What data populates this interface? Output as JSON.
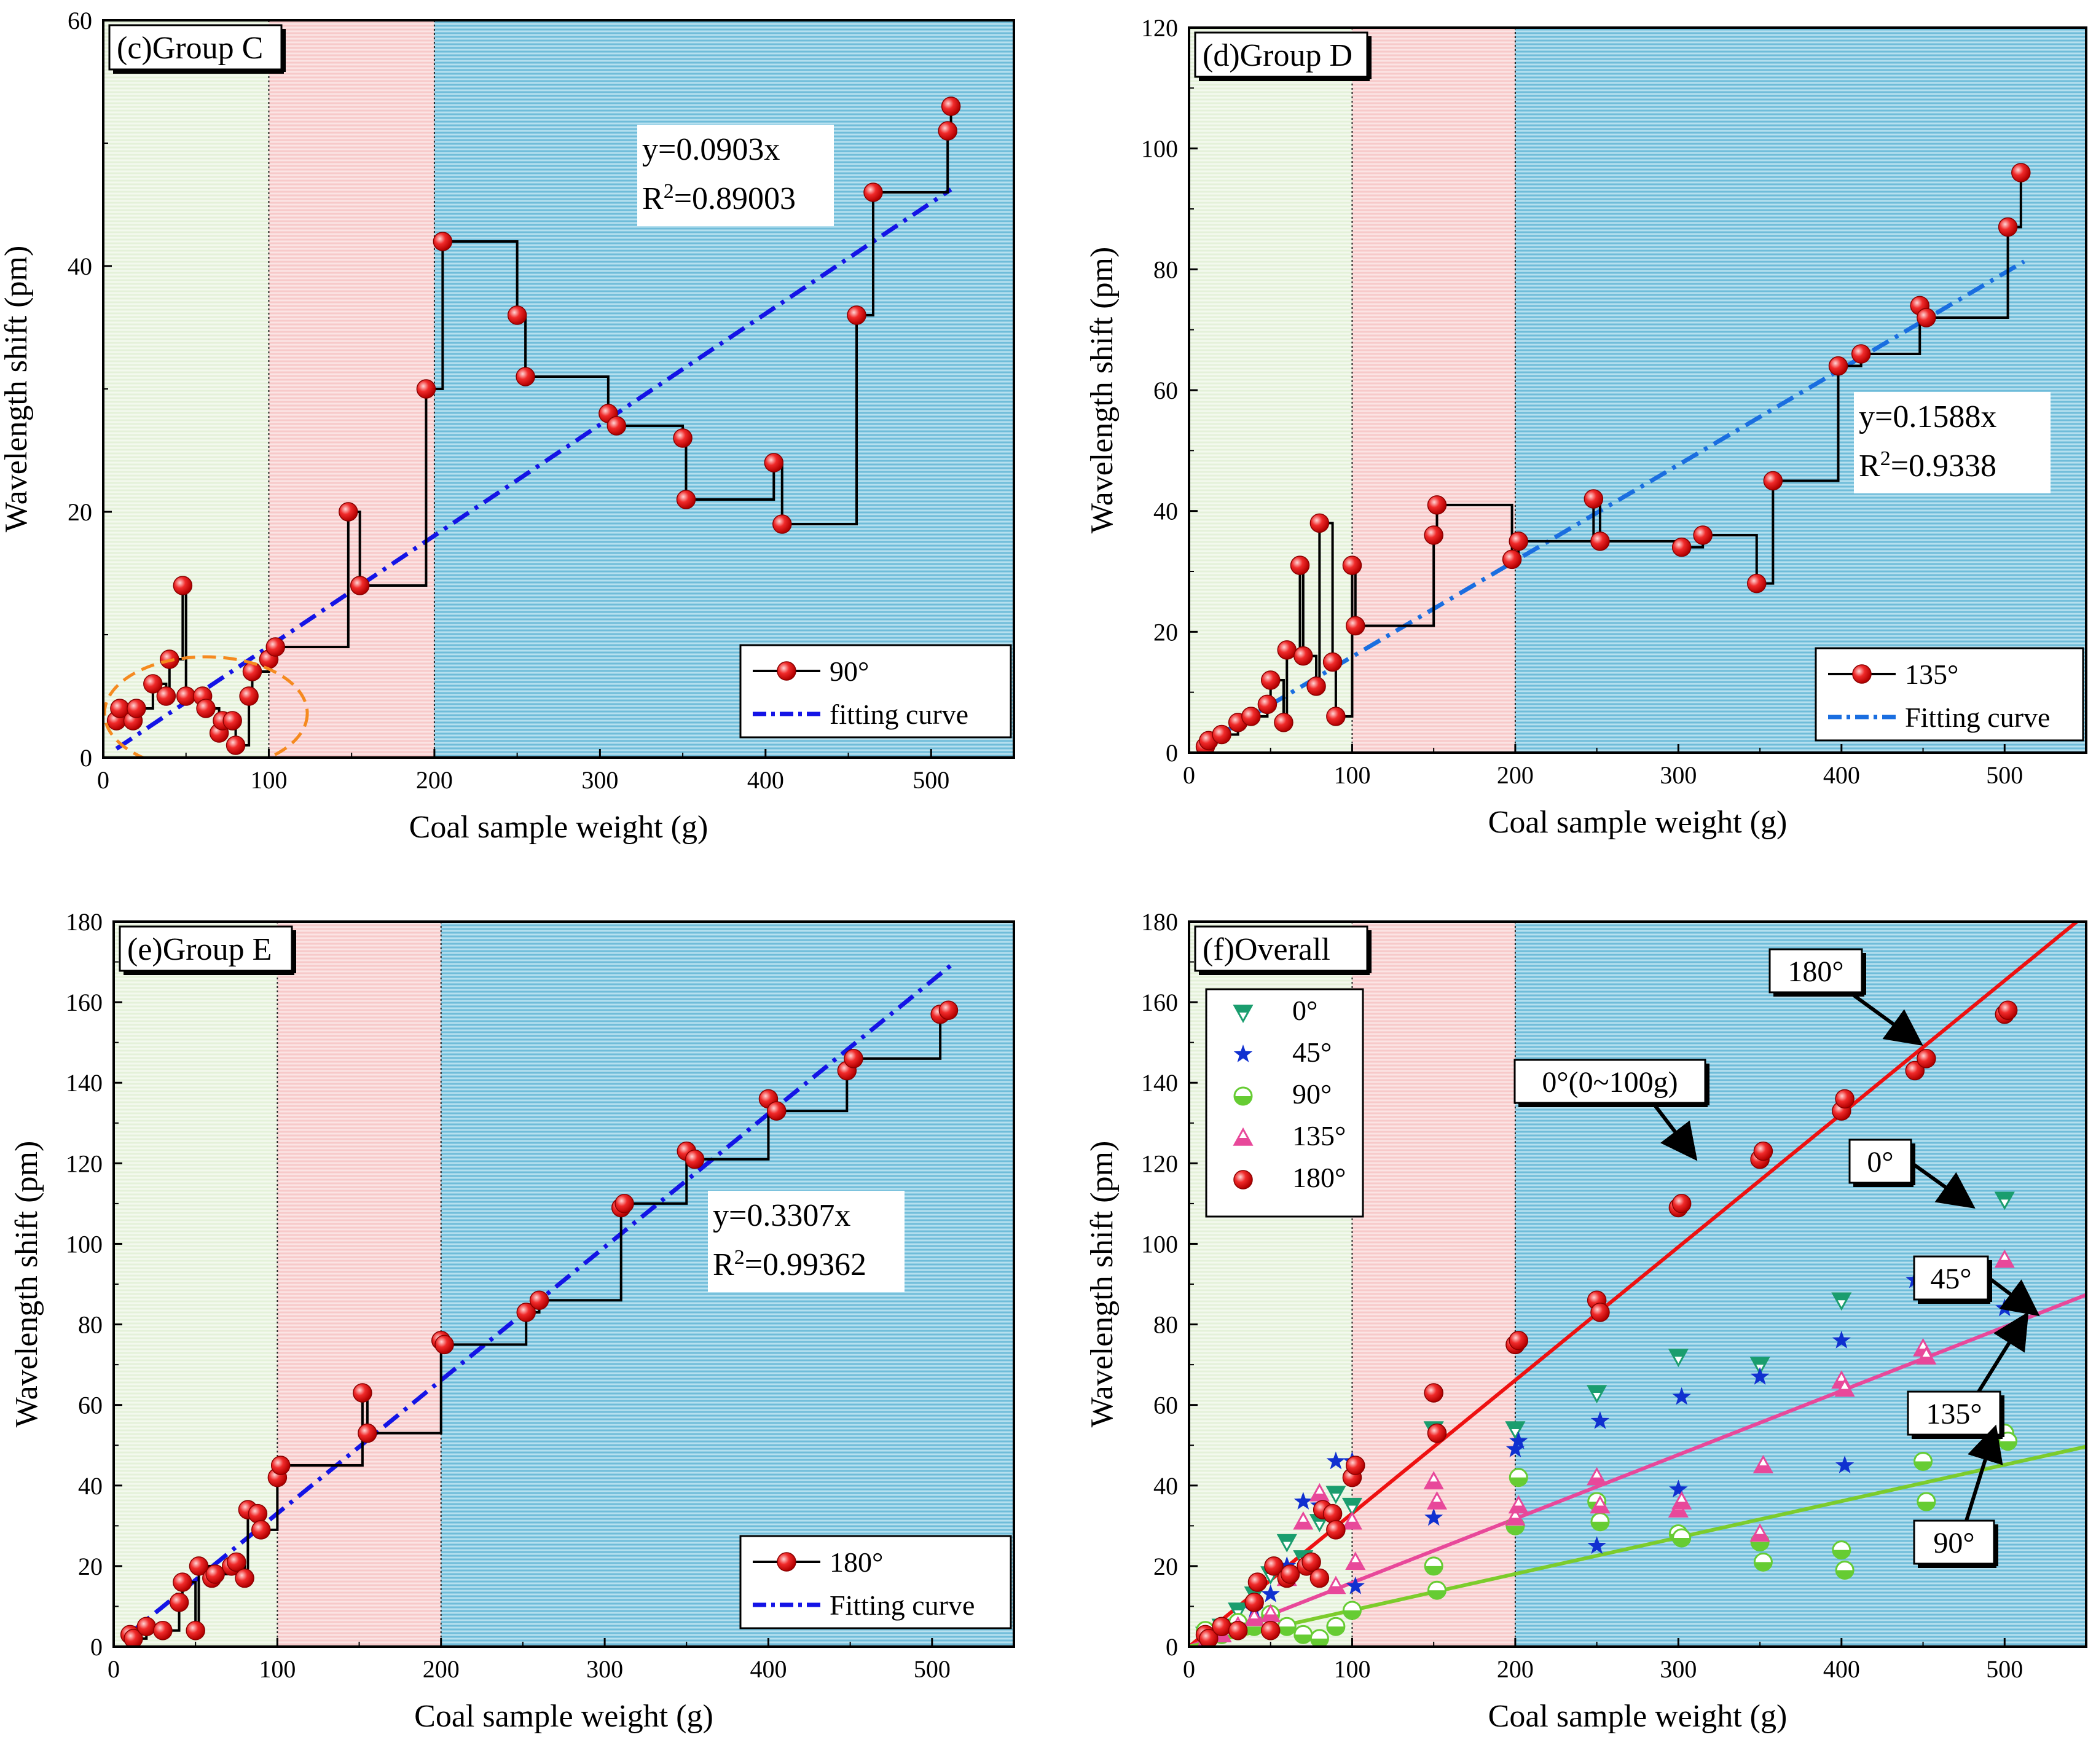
{
  "chart_data": [
    {
      "type": "line",
      "panel_label": "(c)Group C",
      "xlabel": "Coal sample weight (g)",
      "ylabel": "Wavelength shift (pm)",
      "xlim": [
        0,
        550
      ],
      "ylim": [
        0,
        60
      ],
      "xticks": [
        0,
        100,
        200,
        300,
        400,
        500
      ],
      "yticks": [
        0,
        20,
        40,
        60
      ],
      "regions": [
        {
          "from": 0,
          "to": 100,
          "color": "#e5f2dd"
        },
        {
          "from": 100,
          "to": 200,
          "color": "#f9d3d3"
        },
        {
          "from": 200,
          "to": 550,
          "color": "#7ec3de"
        }
      ],
      "equation": "y=0.0903x",
      "r2_prefix": "R",
      "r2_sup": "2",
      "r2_value": "=0.89003",
      "series": [
        {
          "name": "90°",
          "x": [
            8,
            10,
            18,
            20,
            30,
            38,
            40,
            48,
            50,
            60,
            62,
            70,
            72,
            78,
            80,
            88,
            90,
            100,
            104,
            148,
            155,
            195,
            205,
            250,
            255,
            305,
            310,
            350,
            352,
            405,
            410,
            455,
            465,
            510,
            512
          ],
          "y": [
            3,
            4,
            3,
            4,
            6,
            5,
            8,
            14,
            5,
            5,
            4,
            2,
            3,
            3,
            1,
            5,
            7,
            8,
            9,
            20,
            14,
            30,
            42,
            36,
            31,
            28,
            27,
            26,
            21,
            24,
            19,
            36,
            46,
            51,
            53
          ]
        }
      ],
      "fit": {
        "name": "fitting curve",
        "slope": 0.0903,
        "x_range": [
          8,
          512
        ]
      },
      "annotation": "dashed ellipse highlighting 0–100 g points"
    },
    {
      "type": "line",
      "panel_label": "(d)Group D",
      "xlabel": "Coal sample weight (g)",
      "ylabel": "Wavelength shift (pm)",
      "xlim": [
        0,
        550
      ],
      "ylim": [
        0,
        120
      ],
      "xticks": [
        0,
        100,
        200,
        300,
        400,
        500
      ],
      "yticks": [
        0,
        20,
        40,
        60,
        80,
        100,
        120
      ],
      "regions": [
        {
          "from": 0,
          "to": 100,
          "color": "#e5f2dd"
        },
        {
          "from": 100,
          "to": 200,
          "color": "#f9d3d3"
        },
        {
          "from": 200,
          "to": 550,
          "color": "#7ec3de"
        }
      ],
      "equation": "y=0.1588x",
      "r2_prefix": "R",
      "r2_sup": "2",
      "r2_value": "=0.9338",
      "series": [
        {
          "name": "135°",
          "x": [
            10,
            12,
            20,
            30,
            38,
            48,
            50,
            58,
            60,
            68,
            70,
            78,
            80,
            88,
            90,
            100,
            102,
            150,
            152,
            198,
            202,
            248,
            252,
            302,
            315,
            348,
            358,
            398,
            412,
            448,
            452,
            502,
            510
          ],
          "y": [
            1,
            2,
            3,
            5,
            6,
            8,
            12,
            5,
            17,
            31,
            16,
            11,
            38,
            15,
            6,
            31,
            21,
            36,
            41,
            32,
            35,
            42,
            35,
            34,
            36,
            28,
            45,
            64,
            66,
            74,
            72,
            87,
            96
          ]
        }
      ],
      "fit": {
        "name": "Fitting curve",
        "slope": 0.1588,
        "x_range": [
          10,
          512
        ]
      }
    },
    {
      "type": "line",
      "panel_label": "(e)Group E",
      "xlabel": "Coal sample weight (g)",
      "ylabel": "Wavelength shift (pm)",
      "xlim": [
        0,
        550
      ],
      "ylim": [
        0,
        180
      ],
      "xticks": [
        0,
        100,
        200,
        300,
        400,
        500
      ],
      "yticks": [
        0,
        20,
        40,
        60,
        80,
        100,
        120,
        140,
        160,
        180
      ],
      "regions": [
        {
          "from": 0,
          "to": 100,
          "color": "#e5f2dd"
        },
        {
          "from": 100,
          "to": 200,
          "color": "#f9d3d3"
        },
        {
          "from": 200,
          "to": 550,
          "color": "#7ec3de"
        }
      ],
      "equation": "y=0.3307x",
      "r2_prefix": "R",
      "r2_sup": "2",
      "r2_value": "=0.99362",
      "series": [
        {
          "name": "180°",
          "x": [
            10,
            12,
            20,
            30,
            40,
            42,
            50,
            52,
            60,
            62,
            72,
            75,
            80,
            82,
            88,
            90,
            100,
            102,
            152,
            155,
            200,
            202,
            252,
            260,
            310,
            312,
            350,
            355,
            400,
            405,
            448,
            452,
            505,
            510
          ],
          "y": [
            3,
            2,
            5,
            4,
            11,
            16,
            4,
            20,
            17,
            18,
            20,
            21,
            17,
            34,
            33,
            29,
            42,
            45,
            63,
            53,
            76,
            75,
            83,
            86,
            109,
            110,
            123,
            121,
            136,
            133,
            143,
            146,
            157,
            158
          ]
        }
      ],
      "fit": {
        "name": "Fitting curve",
        "slope": 0.3307,
        "x_range": [
          8,
          512
        ]
      }
    },
    {
      "type": "scatter",
      "panel_label": "(f)Overall",
      "xlabel": "Coal sample weight (g)",
      "ylabel": "Wavelength shift (pm)",
      "xlim": [
        0,
        550
      ],
      "ylim": [
        0,
        180
      ],
      "xticks": [
        0,
        100,
        200,
        300,
        400,
        500
      ],
      "yticks": [
        0,
        20,
        40,
        60,
        80,
        100,
        120,
        140,
        160,
        180
      ],
      "regions": [
        {
          "from": 0,
          "to": 100,
          "color": "#e5f2dd"
        },
        {
          "from": 100,
          "to": 200,
          "color": "#f9d3d3"
        },
        {
          "from": 200,
          "to": 550,
          "color": "#7ec3de"
        }
      ],
      "series": [
        {
          "name": "0°",
          "marker": "down-triangle",
          "color": "#1a9d6e",
          "x": [
            10,
            20,
            30,
            40,
            50,
            60,
            70,
            80,
            90,
            100,
            150,
            200,
            250,
            300,
            350,
            400,
            450,
            500
          ],
          "y": [
            3,
            5,
            9,
            13,
            18,
            26,
            22,
            31,
            38,
            35,
            54,
            54,
            63,
            72,
            70,
            86,
            92,
            111
          ]
        },
        {
          "name": "45°",
          "marker": "star",
          "color": "#1030d0",
          "x": [
            10,
            20,
            30,
            40,
            50,
            60,
            70,
            80,
            90,
            100,
            102,
            150,
            200,
            202,
            250,
            252,
            300,
            302,
            350,
            400,
            402,
            445,
            500
          ],
          "y": [
            2,
            4,
            6,
            9,
            13,
            20,
            36,
            35,
            46,
            46,
            15,
            32,
            49,
            51,
            25,
            56,
            39,
            62,
            67,
            76,
            45,
            91,
            84
          ]
        },
        {
          "name": "90°",
          "marker": "half-circle",
          "color": "#66cc33",
          "x": [
            10,
            20,
            30,
            40,
            50,
            60,
            70,
            80,
            90,
            100,
            150,
            152,
            200,
            202,
            250,
            252,
            300,
            302,
            350,
            352,
            400,
            402,
            450,
            452,
            500,
            502
          ],
          "y": [
            4,
            3,
            6,
            5,
            8,
            5,
            3,
            2,
            5,
            9,
            20,
            14,
            30,
            42,
            36,
            31,
            28,
            27,
            26,
            21,
            24,
            19,
            46,
            36,
            53,
            51
          ]
        },
        {
          "name": "135°",
          "marker": "triangle",
          "color": "#e8489a",
          "x": [
            10,
            20,
            30,
            40,
            50,
            60,
            70,
            80,
            90,
            100,
            102,
            150,
            152,
            200,
            202,
            250,
            252,
            300,
            302,
            350,
            352,
            400,
            402,
            450,
            452,
            500
          ],
          "y": [
            1,
            3,
            5,
            7,
            8,
            17,
            31,
            38,
            15,
            31,
            21,
            41,
            36,
            32,
            35,
            42,
            35,
            34,
            36,
            28,
            45,
            66,
            64,
            74,
            72,
            96
          ]
        },
        {
          "name": "180°",
          "marker": "circle",
          "color": "#ee2020",
          "x": [
            10,
            12,
            20,
            30,
            40,
            42,
            50,
            52,
            60,
            62,
            72,
            75,
            80,
            82,
            88,
            90,
            100,
            102,
            150,
            152,
            200,
            202,
            250,
            252,
            300,
            302,
            350,
            352,
            400,
            402,
            445,
            452,
            500,
            502
          ],
          "y": [
            3,
            2,
            5,
            4,
            11,
            16,
            4,
            20,
            17,
            18,
            20,
            21,
            17,
            34,
            33,
            29,
            42,
            45,
            63,
            53,
            75,
            76,
            86,
            83,
            109,
            110,
            121,
            123,
            133,
            136,
            143,
            146,
            157,
            158
          ]
        }
      ],
      "fit_lines": [
        {
          "name": "180°",
          "slope": 0.3307,
          "color": "#ee1111"
        },
        {
          "name": "135°",
          "slope": 0.1588,
          "color": "#e8489a"
        },
        {
          "name": "90°",
          "slope": 0.0903,
          "color": "#7ccc2c"
        }
      ],
      "callouts": [
        "180°",
        "0°(0~100g)",
        "0°",
        "45°",
        "135°",
        "90°"
      ]
    }
  ]
}
